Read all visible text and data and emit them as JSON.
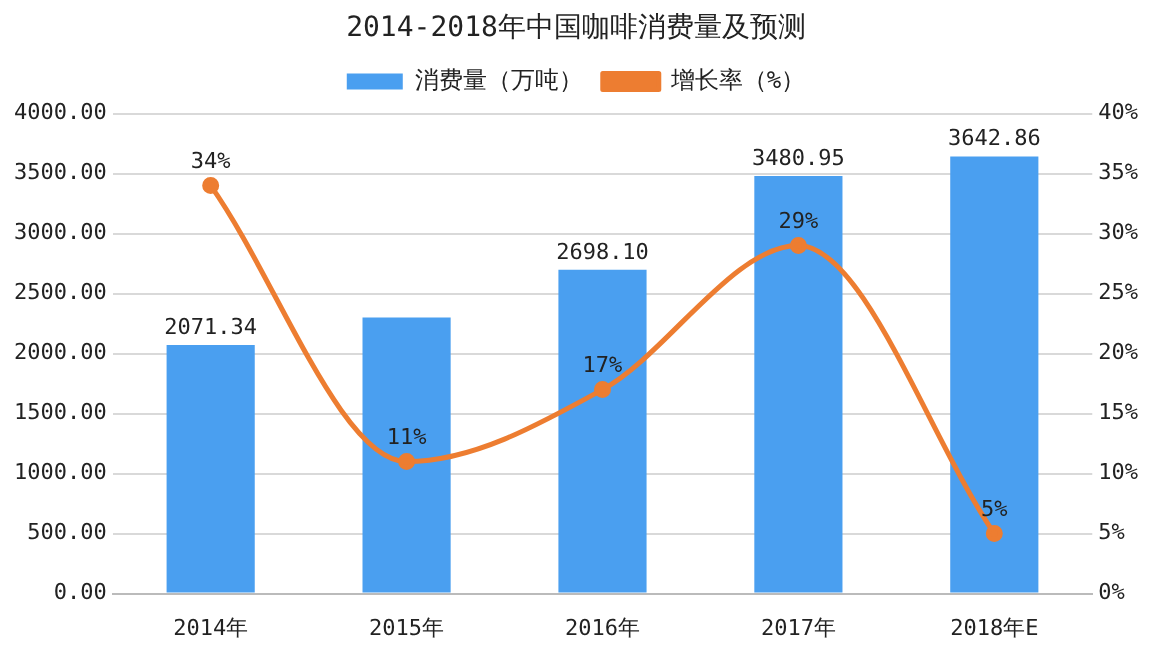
{
  "chart_data": {
    "type": "bar",
    "title": "2014-2018年中国咖啡消费量及预测",
    "categories": [
      "2014年",
      "2015年",
      "2016年",
      "2017年",
      "2018年E"
    ],
    "series": [
      {
        "name": "消费量（万吨）",
        "color": "#4a9ff0",
        "values": [
          2071.34,
          2300,
          2698.1,
          3480.95,
          3642.86
        ],
        "value_labels": [
          "2071.34",
          null,
          "2698.10",
          "3480.95",
          "3642.86"
        ]
      },
      {
        "name": "增长率（%）",
        "type": "line",
        "axis": "y2",
        "color": "#ed7d31",
        "values": [
          34,
          11,
          17,
          29,
          5
        ],
        "value_labels": [
          "34%",
          "11%",
          "17%",
          "29%",
          "5%"
        ]
      }
    ],
    "ylim": [
      0,
      4000
    ],
    "yticks": [
      {
        "value": 0,
        "label": "0.00"
      },
      {
        "value": 500,
        "label": "500.00"
      },
      {
        "value": 1000,
        "label": "1000.00"
      },
      {
        "value": 1500,
        "label": "1500.00"
      },
      {
        "value": 2000,
        "label": "2000.00"
      },
      {
        "value": 2500,
        "label": "2500.00"
      },
      {
        "value": 3000,
        "label": "3000.00"
      },
      {
        "value": 3500,
        "label": "3500.00"
      },
      {
        "value": 4000,
        "label": "4000.00"
      }
    ],
    "y2lim": [
      0,
      40
    ],
    "y2ticks": [
      {
        "value": 0,
        "label": "0%"
      },
      {
        "value": 5,
        "label": "5%"
      },
      {
        "value": 10,
        "label": "10%"
      },
      {
        "value": 15,
        "label": "15%"
      },
      {
        "value": 20,
        "label": "20%"
      },
      {
        "value": 25,
        "label": "25%"
      },
      {
        "value": 30,
        "label": "30%"
      },
      {
        "value": 35,
        "label": "35%"
      },
      {
        "value": 40,
        "label": "40%"
      }
    ],
    "grid": "y",
    "legend": "top",
    "marker": "circle",
    "line_style": "solid"
  }
}
